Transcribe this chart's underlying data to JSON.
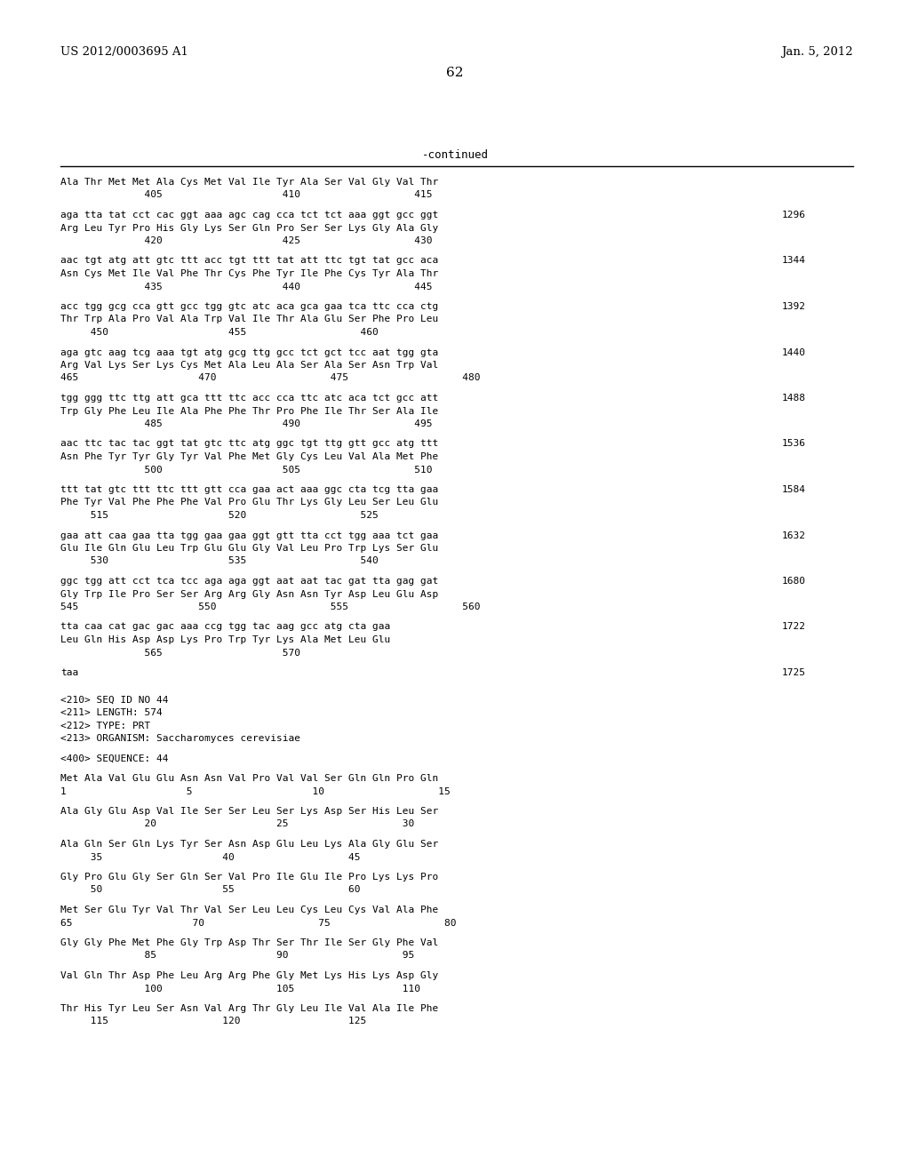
{
  "header_left": "US 2012/0003695 A1",
  "header_right": "Jan. 5, 2012",
  "page_number": "62",
  "continued_label": "-continued",
  "background_color": "#ffffff",
  "text_color": "#000000",
  "content": [
    {
      "type": "aa",
      "text": "Ala Thr Met Met Ala Cys Met Val Ile Tyr Ala Ser Val Gly Val Thr"
    },
    {
      "type": "num",
      "text": "              405                    410                   415"
    },
    {
      "type": "gap"
    },
    {
      "type": "dna",
      "text": "aga tta tat cct cac ggt aaa agc cag cca tct tct aaa ggt gcc ggt",
      "num": "1296"
    },
    {
      "type": "aa",
      "text": "Arg Leu Tyr Pro His Gly Lys Ser Gln Pro Ser Ser Lys Gly Ala Gly"
    },
    {
      "type": "num",
      "text": "              420                    425                   430"
    },
    {
      "type": "gap"
    },
    {
      "type": "dna",
      "text": "aac tgt atg att gtc ttt acc tgt ttt tat att ttc tgt tat gcc aca",
      "num": "1344"
    },
    {
      "type": "aa",
      "text": "Asn Cys Met Ile Val Phe Thr Cys Phe Tyr Ile Phe Cys Tyr Ala Thr"
    },
    {
      "type": "num",
      "text": "              435                    440                   445"
    },
    {
      "type": "gap"
    },
    {
      "type": "dna",
      "text": "acc tgg gcg cca gtt gcc tgg gtc atc aca gca gaa tca ttc cca ctg",
      "num": "1392"
    },
    {
      "type": "aa",
      "text": "Thr Trp Ala Pro Val Ala Trp Val Ile Thr Ala Glu Ser Phe Pro Leu"
    },
    {
      "type": "num",
      "text": "     450                    455                   460"
    },
    {
      "type": "gap"
    },
    {
      "type": "dna",
      "text": "aga gtc aag tcg aaa tgt atg gcg ttg gcc tct gct tcc aat tgg gta",
      "num": "1440"
    },
    {
      "type": "aa",
      "text": "Arg Val Lys Ser Lys Cys Met Ala Leu Ala Ser Ala Ser Asn Trp Val"
    },
    {
      "type": "num",
      "text": "465                    470                   475                   480"
    },
    {
      "type": "gap"
    },
    {
      "type": "dna",
      "text": "tgg ggg ttc ttg att gca ttt ttc acc cca ttc atc aca tct gcc att",
      "num": "1488"
    },
    {
      "type": "aa",
      "text": "Trp Gly Phe Leu Ile Ala Phe Phe Thr Pro Phe Ile Thr Ser Ala Ile"
    },
    {
      "type": "num",
      "text": "              485                    490                   495"
    },
    {
      "type": "gap"
    },
    {
      "type": "dna",
      "text": "aac ttc tac tac ggt tat gtc ttc atg ggc tgt ttg gtt gcc atg ttt",
      "num": "1536"
    },
    {
      "type": "aa",
      "text": "Asn Phe Tyr Tyr Gly Tyr Val Phe Met Gly Cys Leu Val Ala Met Phe"
    },
    {
      "type": "num",
      "text": "              500                    505                   510"
    },
    {
      "type": "gap"
    },
    {
      "type": "dna",
      "text": "ttt tat gtc ttt ttc ttt gtt cca gaa act aaa ggc cta tcg tta gaa",
      "num": "1584"
    },
    {
      "type": "aa",
      "text": "Phe Tyr Val Phe Phe Phe Val Pro Glu Thr Lys Gly Leu Ser Leu Glu"
    },
    {
      "type": "num",
      "text": "     515                    520                   525"
    },
    {
      "type": "gap"
    },
    {
      "type": "dna",
      "text": "gaa att caa gaa tta tgg gaa gaa ggt gtt tta cct tgg aaa tct gaa",
      "num": "1632"
    },
    {
      "type": "aa",
      "text": "Glu Ile Gln Glu Leu Trp Glu Glu Gly Val Leu Pro Trp Lys Ser Glu"
    },
    {
      "type": "num",
      "text": "     530                    535                   540"
    },
    {
      "type": "gap"
    },
    {
      "type": "dna",
      "text": "ggc tgg att cct tca tcc aga aga ggt aat aat tac gat tta gag gat",
      "num": "1680"
    },
    {
      "type": "aa",
      "text": "Gly Trp Ile Pro Ser Ser Arg Arg Gly Asn Asn Tyr Asp Leu Glu Asp"
    },
    {
      "type": "num",
      "text": "545                    550                   555                   560"
    },
    {
      "type": "gap"
    },
    {
      "type": "dna",
      "text": "tta caa cat gac gac aaa ccg tgg tac aag gcc atg cta gaa",
      "num": "1722"
    },
    {
      "type": "aa",
      "text": "Leu Gln His Asp Asp Lys Pro Trp Tyr Lys Ala Met Leu Glu"
    },
    {
      "type": "num",
      "text": "              565                    570"
    },
    {
      "type": "gap"
    },
    {
      "type": "dna",
      "text": "taa",
      "num": "1725"
    },
    {
      "type": "gap"
    },
    {
      "type": "gap"
    },
    {
      "type": "meta",
      "text": "<210> SEQ ID NO 44"
    },
    {
      "type": "meta",
      "text": "<211> LENGTH: 574"
    },
    {
      "type": "meta",
      "text": "<212> TYPE: PRT"
    },
    {
      "type": "meta",
      "text": "<213> ORGANISM: Saccharomyces cerevisiae"
    },
    {
      "type": "gap"
    },
    {
      "type": "meta",
      "text": "<400> SEQUENCE: 44"
    },
    {
      "type": "gap"
    },
    {
      "type": "aa",
      "text": "Met Ala Val Glu Glu Asn Asn Val Pro Val Val Ser Gln Gln Pro Gln"
    },
    {
      "type": "num",
      "text": "1                    5                    10                   15"
    },
    {
      "type": "gap"
    },
    {
      "type": "aa",
      "text": "Ala Gly Glu Asp Val Ile Ser Ser Leu Ser Lys Asp Ser His Leu Ser"
    },
    {
      "type": "num",
      "text": "              20                    25                   30"
    },
    {
      "type": "gap"
    },
    {
      "type": "aa",
      "text": "Ala Gln Ser Gln Lys Tyr Ser Asn Asp Glu Leu Lys Ala Gly Glu Ser"
    },
    {
      "type": "num",
      "text": "     35                    40                   45"
    },
    {
      "type": "gap"
    },
    {
      "type": "aa",
      "text": "Gly Pro Glu Gly Ser Gln Ser Val Pro Ile Glu Ile Pro Lys Lys Pro"
    },
    {
      "type": "num",
      "text": "     50                    55                   60"
    },
    {
      "type": "gap"
    },
    {
      "type": "aa",
      "text": "Met Ser Glu Tyr Val Thr Val Ser Leu Leu Cys Leu Cys Val Ala Phe"
    },
    {
      "type": "num",
      "text": "65                    70                   75                   80"
    },
    {
      "type": "gap"
    },
    {
      "type": "aa",
      "text": "Gly Gly Phe Met Phe Gly Trp Asp Thr Ser Thr Ile Ser Gly Phe Val"
    },
    {
      "type": "num",
      "text": "              85                    90                   95"
    },
    {
      "type": "gap"
    },
    {
      "type": "aa",
      "text": "Val Gln Thr Asp Phe Leu Arg Arg Phe Gly Met Lys His Lys Asp Gly"
    },
    {
      "type": "num",
      "text": "              100                   105                  110"
    },
    {
      "type": "gap"
    },
    {
      "type": "aa",
      "text": "Thr His Tyr Leu Ser Asn Val Arg Thr Gly Leu Ile Val Ala Ile Phe"
    },
    {
      "type": "num",
      "text": "     115                   120                  125"
    }
  ]
}
